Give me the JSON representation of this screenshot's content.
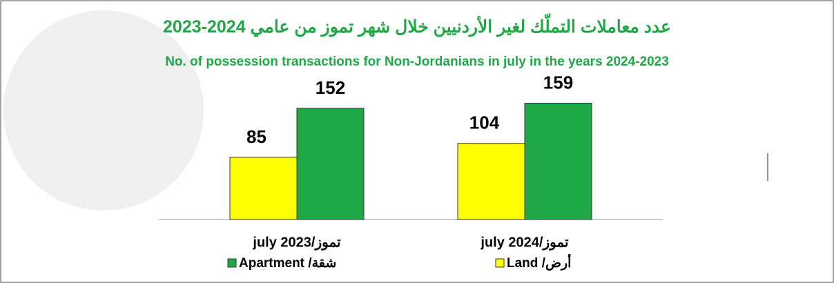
{
  "chart_data": {
    "type": "bar",
    "title": "عدد معاملات التملّك لغير الأردنيين خلال شهر تموز من عامي 2024-2023",
    "subtitle": "No. of possession transactions for Non-Jordanians in july in the years 2024-2023",
    "categories": [
      "july 2023/تموز",
      "july 2024/تموز"
    ],
    "series": [
      {
        "name": "Land /أرض",
        "color": "#ffff00",
        "values": [
          85,
          104
        ]
      },
      {
        "name": "Apartment /شقة",
        "color": "#1fa846",
        "values": [
          152,
          159
        ]
      }
    ]
  }
}
